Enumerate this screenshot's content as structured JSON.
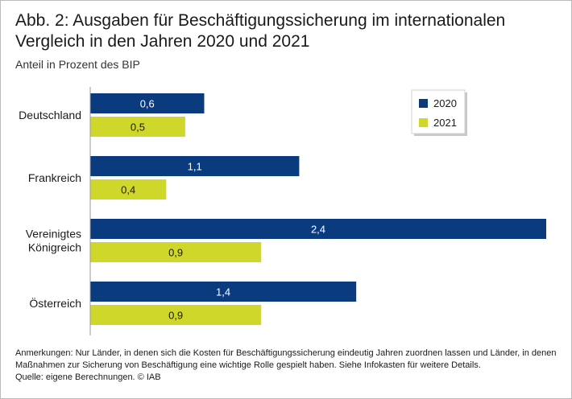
{
  "title": "Abb. 2: Ausgaben für Beschäftigungssicherung im internationalen Vergleich in den Jahren 2020 und 2021",
  "subtitle": "Anteil in Prozent des BIP",
  "notes": {
    "remarks": "Anmerkungen: Nur Länder, in denen sich die Kosten für Beschäftigungssicherung eindeutig Jahren zuordnen lassen und Länder, in denen Maßnahmen zur Sicherung von Beschäftigung eine wichtige Rolle gespielt haben. Siehe Infokasten für weitere Details.",
    "source": "Quelle: eigene Berechnungen.  © IAB"
  },
  "colors": {
    "series_2020": "#0b3b7f",
    "series_2021": "#cfd72a",
    "label_2020": "#ffffff",
    "label_2021": "#1a1a1a"
  },
  "chart_data": {
    "type": "bar",
    "orientation": "horizontal",
    "title": "Abb. 2: Ausgaben für Beschäftigungssicherung im internationalen Vergleich in den Jahren 2020 und 2021",
    "subtitle": "Anteil in Prozent des BIP",
    "xlabel": "",
    "ylabel": "",
    "xlim": [
      0,
      2.4
    ],
    "grid": false,
    "legend_position": "top-right",
    "categories": [
      {
        "lines": [
          "Deutschland"
        ]
      },
      {
        "lines": [
          "Frankreich"
        ]
      },
      {
        "lines": [
          "Vereinigtes",
          "Königreich"
        ]
      },
      {
        "lines": [
          "Österreich"
        ]
      }
    ],
    "series": [
      {
        "name": "2020",
        "values": [
          0.6,
          1.1,
          2.4,
          1.4
        ],
        "labels": [
          "0,6",
          "1,1",
          "2,4",
          "1,4"
        ]
      },
      {
        "name": "2021",
        "values": [
          0.5,
          0.4,
          0.9,
          0.9
        ],
        "labels": [
          "0,5",
          "0,4",
          "0,9",
          "0,9"
        ]
      }
    ]
  }
}
